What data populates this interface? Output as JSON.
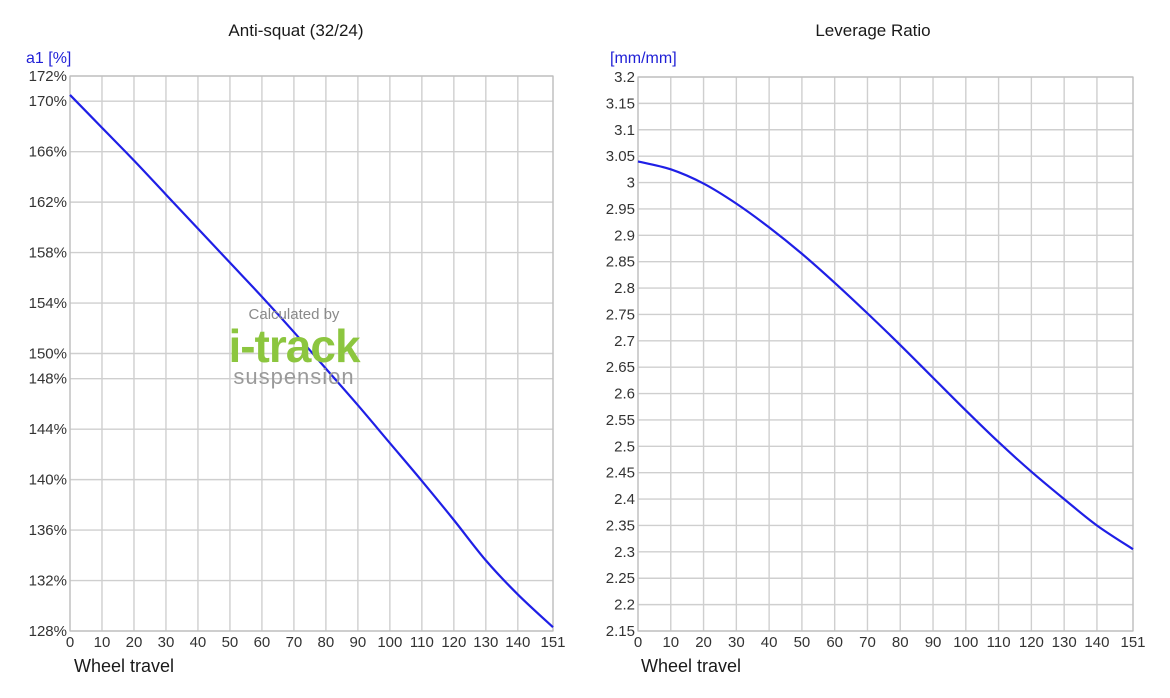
{
  "chart_data": [
    {
      "type": "line",
      "title": "Anti-squat (32/24)",
      "ylabel": "a1 [%]",
      "xlabel": "Wheel travel",
      "x_ticks": [
        "0",
        "10",
        "20",
        "30",
        "40",
        "50",
        "60",
        "70",
        "80",
        "90",
        "100",
        "110",
        "120",
        "130",
        "140",
        "151"
      ],
      "y_ticks": [
        "128%",
        "132%",
        "136%",
        "140%",
        "144%",
        "148%",
        "150%",
        "154%",
        "158%",
        "162%",
        "166%",
        "170%",
        "172%"
      ],
      "xlim": [
        0,
        151
      ],
      "ylim": [
        128,
        172
      ],
      "grid": true,
      "series": [
        {
          "x": [
            0,
            10,
            20,
            30,
            40,
            50,
            60,
            70,
            80,
            90,
            100,
            110,
            120,
            130,
            140,
            151
          ],
          "y": [
            170.5,
            167.9,
            165.3,
            162.6,
            159.9,
            157.2,
            154.5,
            151.7,
            148.8,
            145.9,
            142.9,
            139.9,
            136.8,
            133.6,
            130.9,
            128.3
          ]
        }
      ]
    },
    {
      "type": "line",
      "title": "Leverage Ratio",
      "ylabel": "[mm/mm]",
      "xlabel": "Wheel travel",
      "x_ticks": [
        "0",
        "10",
        "20",
        "30",
        "40",
        "50",
        "60",
        "70",
        "80",
        "90",
        "100",
        "110",
        "120",
        "130",
        "140",
        "151"
      ],
      "y_ticks": [
        "2.15",
        "2.2",
        "2.25",
        "2.3",
        "2.35",
        "2.4",
        "2.45",
        "2.5",
        "2.55",
        "2.6",
        "2.65",
        "2.7",
        "2.75",
        "2.8",
        "2.85",
        "2.9",
        "2.95",
        "3",
        "3.05",
        "3.1",
        "3.15",
        "3.2"
      ],
      "xlim": [
        0,
        151
      ],
      "ylim": [
        2.15,
        3.2
      ],
      "grid": true,
      "series": [
        {
          "x": [
            0,
            10,
            20,
            30,
            40,
            50,
            60,
            70,
            80,
            90,
            100,
            110,
            120,
            130,
            140,
            151
          ],
          "y": [
            3.04,
            3.025,
            2.998,
            2.96,
            2.915,
            2.865,
            2.81,
            2.752,
            2.692,
            2.63,
            2.568,
            2.508,
            2.452,
            2.4,
            2.35,
            2.305
          ]
        }
      ]
    }
  ],
  "watermark": {
    "top": "Calculated by",
    "brand": "i-track",
    "sub": "suspension"
  }
}
